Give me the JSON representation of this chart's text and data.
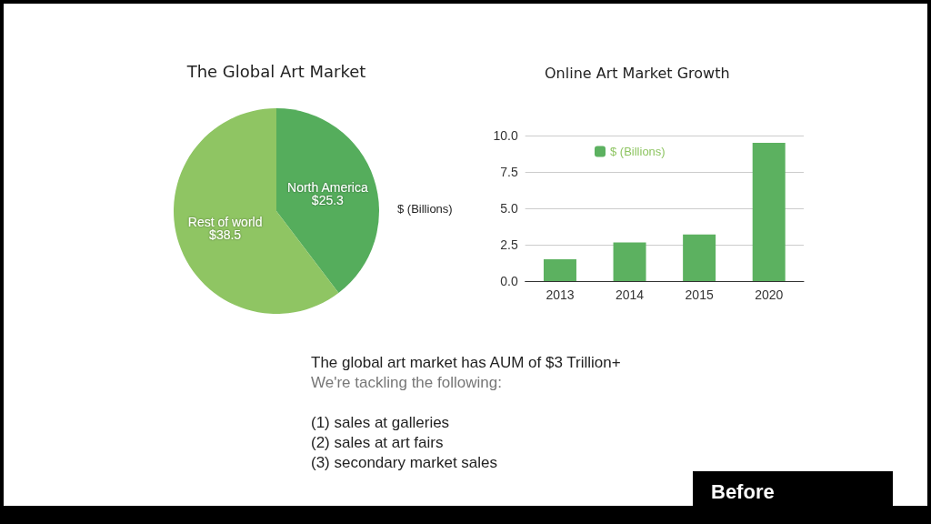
{
  "chart_data": [
    {
      "type": "pie",
      "title": "The Global Art Market",
      "categories": [
        "North America",
        "Rest of world"
      ],
      "values": [
        25.3,
        38.5
      ],
      "colors": [
        "#55ad5c",
        "#8fc563"
      ],
      "value_labels": [
        "$25.3",
        "$38.5"
      ],
      "legend": false
    },
    {
      "type": "bar",
      "title": "Online Art Market Growth",
      "ylabel": "$ (Billions)",
      "categories": [
        "2013",
        "2014",
        "2015",
        "2020"
      ],
      "series": [
        {
          "name": "$ (Billions)",
          "color": "#5cb160",
          "values": [
            1.5,
            2.65,
            3.2,
            9.5
          ]
        }
      ],
      "ylim": [
        0,
        10
      ],
      "yticks": [
        {
          "value": 0,
          "label": "0.0"
        },
        2.5,
        {
          "value": 5,
          "label": "5.0"
        },
        7.5,
        {
          "value": 10,
          "label": "10.0"
        }
      ],
      "grid": "y",
      "legend": "top"
    },
    {
      "type": "other",
      "annotations": [
        "The global art market has AUM of $3 Trillion+",
        "We're tackling the following:",
        "(1) sales at galleries",
        "(2) sales at art fairs",
        "(3) secondary market sales",
        "Before"
      ]
    }
  ]
}
